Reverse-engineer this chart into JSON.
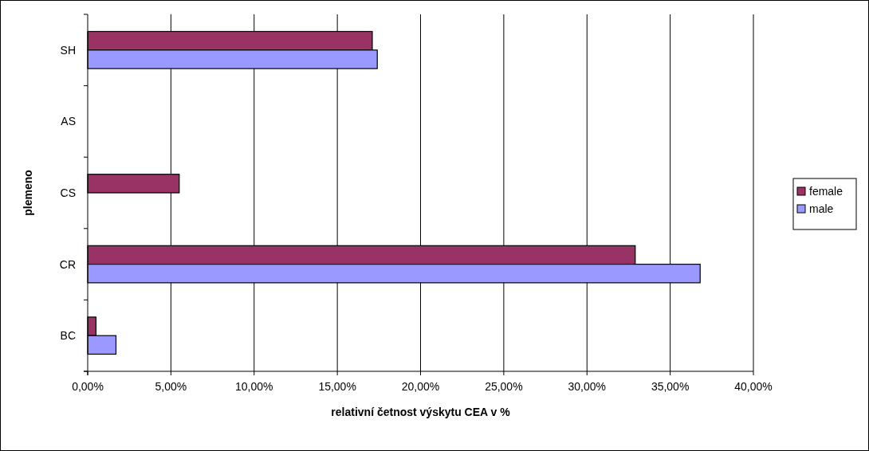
{
  "chart_data": {
    "type": "bar",
    "orientation": "horizontal",
    "xlabel": "relativní četnost výskytu CEA v %",
    "ylabel": "plemeno",
    "categories": [
      "SH",
      "AS",
      "CS",
      "CR",
      "BC"
    ],
    "series": [
      {
        "name": "female",
        "color": "#993366",
        "values": [
          17.1,
          0,
          5.5,
          32.9,
          0.5
        ]
      },
      {
        "name": "male",
        "color": "#9999ff",
        "values": [
          17.4,
          0,
          0,
          36.8,
          1.7
        ]
      }
    ],
    "xlim": [
      0,
      40
    ],
    "xticks": [
      {
        "value": 0,
        "label": "0,00%"
      },
      {
        "value": 5,
        "label": "5,00%"
      },
      {
        "value": 10,
        "label": "10,00%"
      },
      {
        "value": 15,
        "label": "15,00%"
      },
      {
        "value": 20,
        "label": "20,00%"
      },
      {
        "value": 25,
        "label": "25,00%"
      },
      {
        "value": 30,
        "label": "30,00%"
      },
      {
        "value": 35,
        "label": "35,00%"
      },
      {
        "value": 40,
        "label": "40,00%"
      }
    ],
    "grid": "x",
    "legend": "right"
  }
}
